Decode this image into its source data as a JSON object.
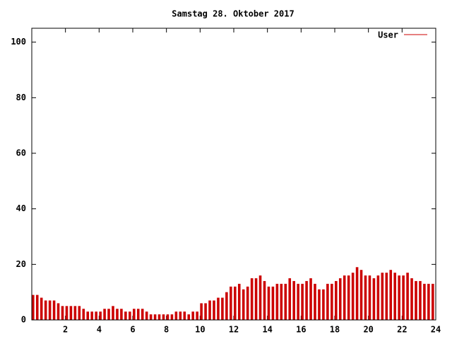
{
  "chart_data": {
    "type": "impulse",
    "title": "Samstag 28. Oktober 2017",
    "series": [
      {
        "name": "User",
        "color": "#cc0000",
        "x": [
          0,
          0.25,
          0.5,
          0.75,
          1,
          1.25,
          1.5,
          1.75,
          2,
          2.25,
          2.5,
          2.75,
          3,
          3.25,
          3.5,
          3.75,
          4,
          4.25,
          4.5,
          4.75,
          5,
          5.25,
          5.5,
          5.75,
          6,
          6.25,
          6.5,
          6.75,
          7,
          7.25,
          7.5,
          7.75,
          8,
          8.25,
          8.5,
          8.75,
          9,
          9.25,
          9.5,
          9.75,
          10,
          10.25,
          10.5,
          10.75,
          11,
          11.25,
          11.5,
          11.75,
          12,
          12.25,
          12.5,
          12.75,
          13,
          13.25,
          13.5,
          13.75,
          14,
          14.25,
          14.5,
          14.75,
          15,
          15.25,
          15.5,
          15.75,
          16,
          16.25,
          16.5,
          16.75,
          17,
          17.25,
          17.5,
          17.75,
          18,
          18.25,
          18.5,
          18.75,
          19,
          19.25,
          19.5,
          19.75,
          20,
          20.25,
          20.5,
          20.75,
          21,
          21.25,
          21.5,
          21.75,
          22,
          22.25,
          22.5,
          22.75,
          23,
          23.25,
          23.5,
          23.75
        ],
        "values": [
          9,
          9,
          8,
          7,
          7,
          7,
          6,
          5,
          5,
          5,
          5,
          5,
          4,
          3,
          3,
          3,
          3,
          4,
          4,
          5,
          4,
          4,
          3,
          3,
          4,
          4,
          4,
          3,
          2,
          2,
          2,
          2,
          2,
          2,
          3,
          3,
          3,
          2,
          3,
          3,
          6,
          6,
          7,
          7,
          8,
          8,
          10,
          12,
          12,
          13,
          11,
          12,
          15,
          15,
          16,
          14,
          12,
          12,
          13,
          13,
          13,
          15,
          14,
          13,
          13,
          14,
          15,
          13,
          11,
          11,
          13,
          13,
          14,
          15,
          16,
          16,
          17,
          19,
          18,
          16,
          16,
          15,
          16,
          17,
          17,
          18,
          17,
          16,
          16,
          17,
          15,
          14,
          14,
          13,
          13,
          13
        ]
      }
    ],
    "xlim": [
      0,
      24
    ],
    "xticks": [
      2,
      4,
      6,
      8,
      10,
      12,
      14,
      16,
      18,
      20,
      22,
      24
    ],
    "ylim": [
      0,
      105
    ],
    "yticks": [
      0,
      20,
      40,
      60,
      80,
      100
    ]
  }
}
